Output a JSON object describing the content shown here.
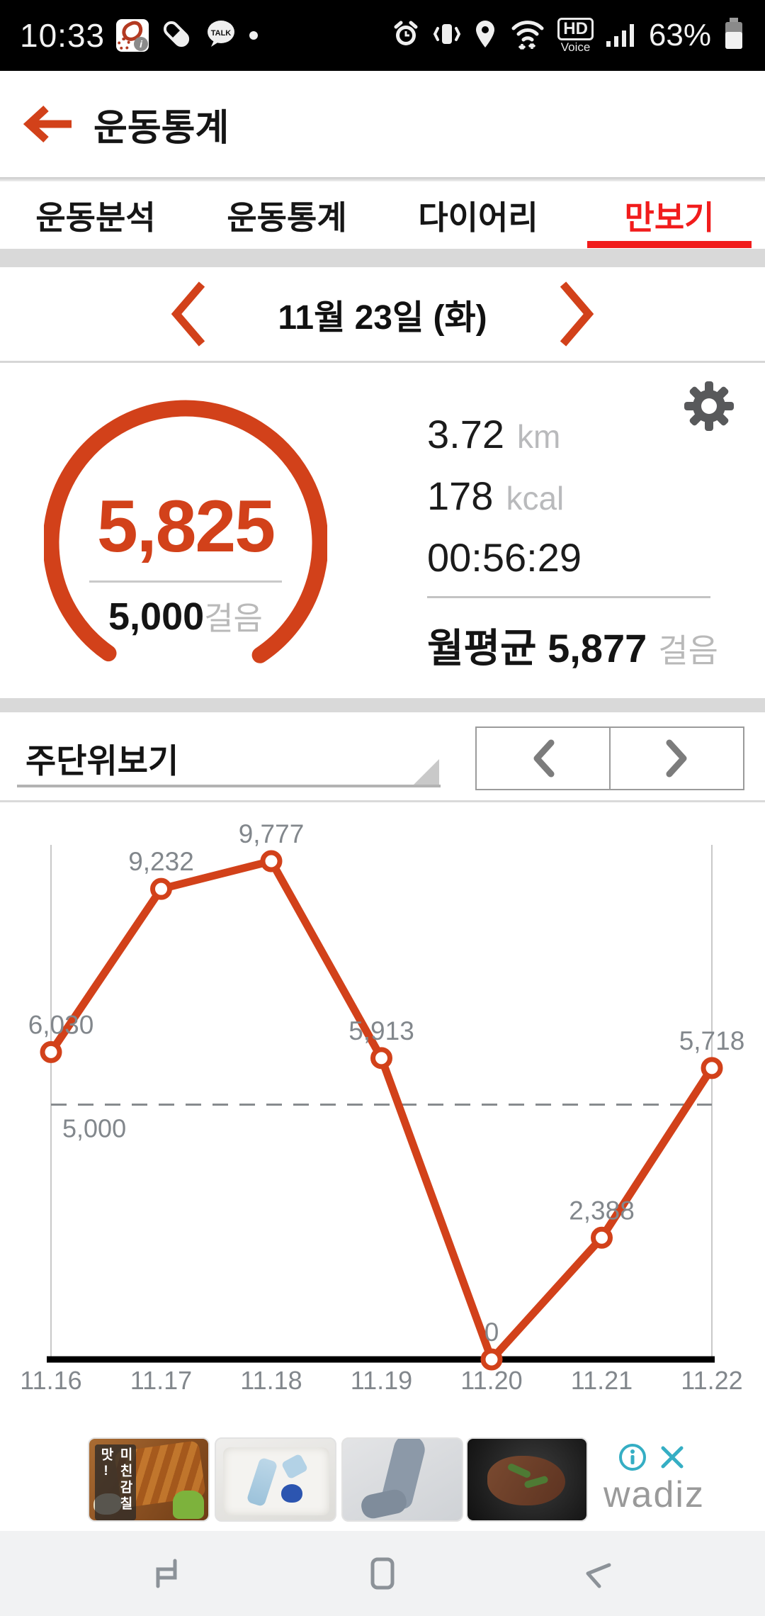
{
  "status_bar": {
    "time": "10:33",
    "battery_pct": "63%",
    "hd": "HD",
    "voice": "Voice",
    "kakao": "TALK"
  },
  "header": {
    "title": "운동통계"
  },
  "tabs": {
    "items": [
      {
        "label": "운동분석",
        "active": false
      },
      {
        "label": "운동통계",
        "active": false
      },
      {
        "label": "다이어리",
        "active": false
      },
      {
        "label": "만보기",
        "active": true
      }
    ],
    "active_color": "#f11c1c"
  },
  "date_nav": {
    "date_label": "11월 23일 (화)"
  },
  "summary": {
    "steps": "5,825",
    "goal": "5,000",
    "goal_unit": "걸음",
    "distance": "3.72",
    "distance_unit": "km",
    "calories": "178",
    "calories_unit": "kcal",
    "duration": "00:56:29",
    "month_avg": "월평균 5,877",
    "month_avg_unit": "걸음",
    "accent_color": "#d2411a"
  },
  "controls": {
    "view_mode": "주단위보기"
  },
  "chart_data": {
    "type": "line",
    "x": [
      "11.16",
      "11.17",
      "11.18",
      "11.19",
      "11.20",
      "11.21",
      "11.22"
    ],
    "values": [
      6030,
      9232,
      9777,
      5913,
      0,
      2388,
      5718
    ],
    "value_labels": [
      "6,030",
      "9,232",
      "9,777",
      "5,913",
      "0",
      "2,388",
      "5,718"
    ],
    "goal_line": {
      "value": 5000,
      "label": "5,000"
    },
    "ylim": [
      0,
      10000
    ],
    "title": "",
    "xlabel": "",
    "ylabel": "",
    "legend": "none",
    "grid": "vertical edges only, dashed goal line",
    "line_color": "#d2411a",
    "label_color": "#82878c"
  },
  "ad": {
    "badge_text": "미친감칠맛!",
    "brand": "wadiz",
    "accent_color": "#35aec4"
  }
}
